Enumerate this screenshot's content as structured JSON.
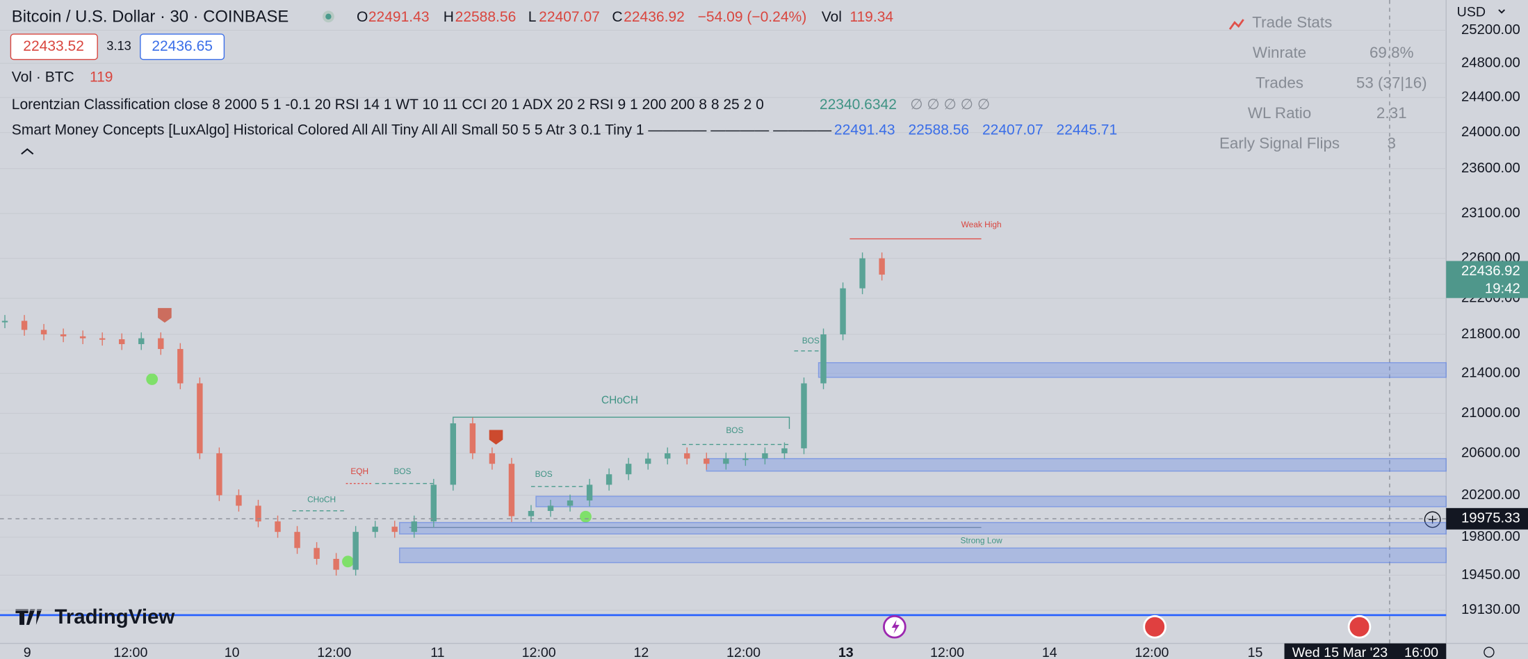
{
  "header": {
    "symbol": "Bitcoin / U.S. Dollar · 30 · COINBASE",
    "o_label": "O",
    "o": "22491.43",
    "h_label": "H",
    "h": "22588.56",
    "l_label": "L",
    "l": "22407.07",
    "c_label": "C",
    "c": "22436.92",
    "change": "−54.09 (−0.24%)",
    "vol_label": "Vol",
    "vol": "119.34"
  },
  "quote": {
    "bid": "22433.52",
    "spread": "3.13",
    "ask": "22436.65"
  },
  "indicators": [
    {
      "name": "Vol · BTC",
      "values": [
        "119"
      ]
    },
    {
      "name": "Lorentzian Classification close 8 2000 5 1 -0.1 20 RSI 14 1 WT 10 11 CCI 20 1 ADX 20 2 RSI 9 1 200 200 8 8 25 2 0",
      "values": [
        "22340.6342",
        "∅ ∅ ∅ ∅ ∅"
      ]
    },
    {
      "name": "Smart Money Concepts [LuxAlgo] Historical Colored All All Tiny All All Small 50 5 5 Atr 3 0.1 Tiny 1 ———— ———— ————",
      "values": [
        "22491.43",
        "22588.56",
        "22407.07",
        "22445.71"
      ]
    }
  ],
  "trade_stats": {
    "title": "Trade Stats",
    "rows": [
      [
        "Winrate",
        "69.8%"
      ],
      [
        "Trades",
        "53 (37|16)"
      ],
      [
        "WL Ratio",
        "2.31"
      ],
      [
        "Early Signal Flips",
        "3"
      ]
    ]
  },
  "currency": "USD",
  "chart": {
    "ylim": [
      18780,
      25520
    ],
    "yticks": [
      {
        "value": 25200,
        "label": "25200.00"
      },
      {
        "value": 24800,
        "label": "24800.00"
      },
      {
        "value": 24400,
        "label": "24400.00"
      },
      {
        "value": 24000,
        "label": "24000.00"
      },
      {
        "value": 23600,
        "label": "23600.00"
      },
      {
        "value": 23100,
        "label": "23100.00"
      },
      {
        "value": 22600,
        "label": "22600.00"
      },
      {
        "value": 22200,
        "label": "22200.00"
      },
      {
        "value": 21800,
        "label": "21800.00"
      },
      {
        "value": 21400,
        "label": "21400.00"
      },
      {
        "value": 21000,
        "label": "21000.00"
      },
      {
        "value": 20600,
        "label": "20600.00"
      },
      {
        "value": 20200,
        "label": "20200.00"
      },
      {
        "value": 19800,
        "label": "19800.00"
      },
      {
        "value": 19450,
        "label": "19450.00"
      },
      {
        "value": 19130,
        "label": "19130.00"
      }
    ],
    "closes": [
      21950,
      21850,
      21800,
      21780,
      21760,
      21750,
      21700,
      21760,
      21650,
      21300,
      20600,
      20200,
      20100,
      19950,
      19850,
      19700,
      19600,
      19500,
      19850,
      19900,
      19850,
      19950,
      20300,
      20900,
      20600,
      20500,
      20000,
      20050,
      20100,
      20150,
      20300,
      20400,
      20500,
      20550,
      20600,
      20550,
      20500,
      20550,
      20550,
      20600,
      20650,
      21300,
      21800,
      22300,
      22600,
      22437
    ],
    "zones": [
      [
        21360,
        21510
      ],
      [
        20430,
        20550
      ],
      [
        20090,
        20190
      ],
      [
        19830,
        19940
      ],
      [
        19565,
        19700
      ]
    ],
    "annotations": [
      "CHoCH",
      "BOS",
      "CHoCH",
      "BOS",
      "BOS",
      "BOS",
      "EQH",
      "Weak High",
      "Strong Low"
    ],
    "current_price": 22436.92,
    "countdown": "19:42",
    "crosshair_price": 19975.33,
    "time_labels": [
      "9",
      "12:00",
      "10",
      "12:00",
      "11",
      "12:00",
      "12",
      "12:00",
      "13",
      "12:00",
      "14",
      "12:00",
      "15"
    ],
    "date_label": "Wed 15 Mar '23",
    "time_label": "16:00"
  },
  "brand": "TradingView"
}
